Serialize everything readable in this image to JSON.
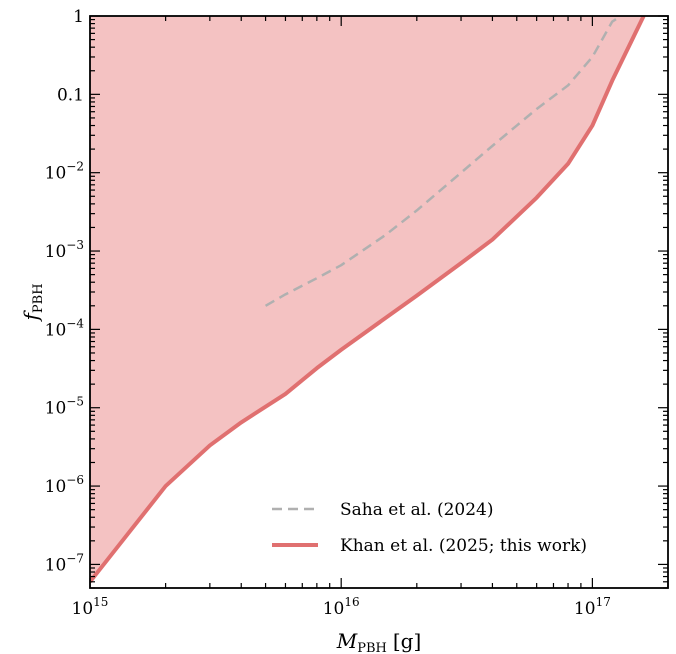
{
  "chart_data": {
    "type": "area",
    "xscale": "log",
    "yscale": "log",
    "xlim": [
      1000000000000000.0,
      2e+17
    ],
    "ylim": [
      5e-08,
      1
    ],
    "xlabel": {
      "main": "M",
      "sub": "PBH",
      "unit": "[g]"
    },
    "ylabel": {
      "main": "f",
      "sub": "PBH"
    },
    "xticks": [
      {
        "value": 1000000000000000.0,
        "base": "10",
        "exp": "15"
      },
      {
        "value": 1e+16,
        "base": "10",
        "exp": "16"
      },
      {
        "value": 1e+17,
        "base": "10",
        "exp": "17"
      }
    ],
    "yticks": [
      {
        "value": 1,
        "text": "1"
      },
      {
        "value": 0.1,
        "text": "0.1"
      },
      {
        "value": 0.01,
        "base": "10",
        "exp": "−2"
      },
      {
        "value": 0.001,
        "base": "10",
        "exp": "−3"
      },
      {
        "value": 0.0001,
        "base": "10",
        "exp": "−4"
      },
      {
        "value": 1e-05,
        "base": "10",
        "exp": "−5"
      },
      {
        "value": 1e-06,
        "base": "10",
        "exp": "−6"
      },
      {
        "value": 1e-07,
        "base": "10",
        "exp": "−7"
      }
    ],
    "grid": false,
    "legend": "bottom-right",
    "series": [
      {
        "name": "Saha et al. (2024)",
        "style": "dashed",
        "color": "#b0b0b0",
        "x": [
          5000000000000000.0,
          6000000000000000.0,
          8000000000000000.0,
          1e+16,
          1.5e+16,
          2e+16,
          3e+16,
          4e+16,
          5e+16,
          6e+16,
          8e+16,
          1e+17,
          1.2e+17,
          1.3e+17
        ],
        "y": [
          0.0002,
          0.00028,
          0.00045,
          0.00066,
          0.0016,
          0.0033,
          0.01,
          0.022,
          0.04,
          0.065,
          0.13,
          0.3,
          0.85,
          1.0
        ]
      },
      {
        "name": "Khan et al. (2025; this work)",
        "style": "solid",
        "color": "#e07070",
        "fill": "#f4c2c2",
        "x": [
          1000000000000000.0,
          2000000000000000.0,
          3000000000000000.0,
          4000000000000000.0,
          6000000000000000.0,
          8000000000000000.0,
          1e+16,
          2e+16,
          3e+16,
          4e+16,
          6e+16,
          8e+16,
          1e+17,
          1.2e+17,
          1.6e+17
        ],
        "y": [
          6e-08,
          1e-06,
          3.3e-06,
          6.5e-06,
          1.5e-05,
          3.2e-05,
          5.5e-05,
          0.00027,
          0.0007,
          0.0014,
          0.0048,
          0.013,
          0.04,
          0.15,
          1.0
        ]
      }
    ]
  }
}
